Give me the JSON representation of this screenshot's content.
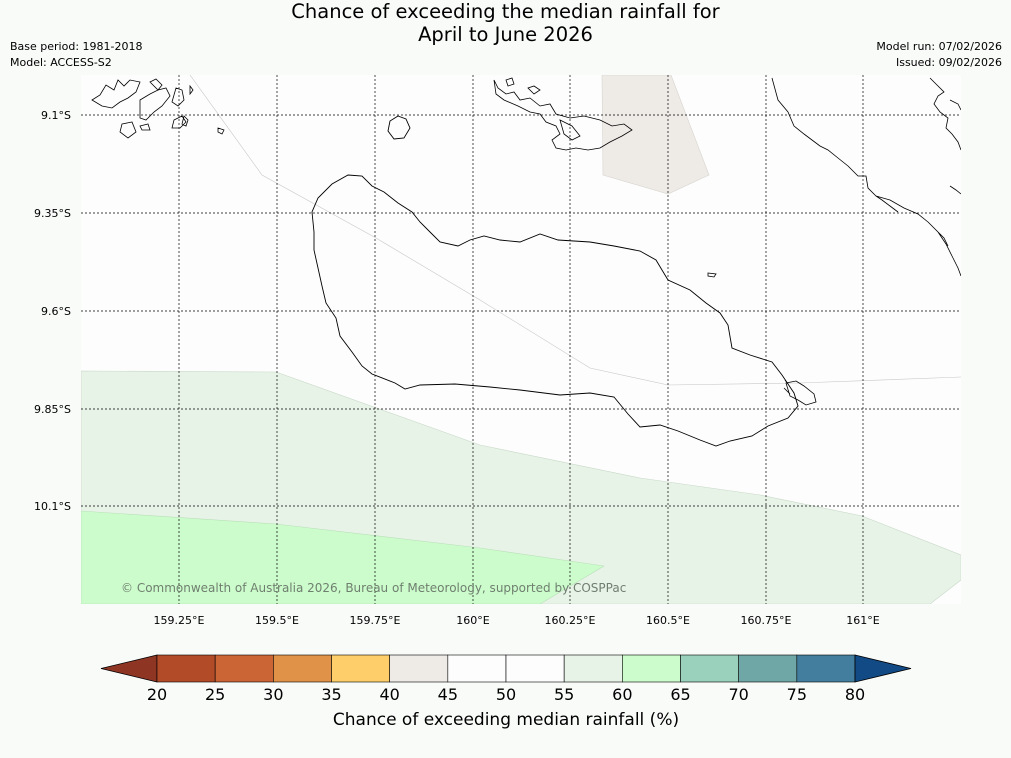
{
  "title": {
    "line1": "Chance of exceeding the median rainfall for",
    "line2": "April to June 2026"
  },
  "meta": {
    "base_period": "Base period: 1981-2018",
    "model": "Model: ACCESS-S2",
    "model_run": "Model run: 07/02/2026",
    "issued": "Issued: 09/02/2026"
  },
  "map": {
    "lat_labels": [
      "9.1°S",
      "9.35°S",
      "9.6°S",
      "9.85°S",
      "10.1°S"
    ],
    "lon_labels": [
      "159.25°E",
      "159.5°E",
      "159.75°E",
      "160°E",
      "160.25°E",
      "160.5°E",
      "160.75°E",
      "161°E"
    ],
    "copyright": "© Commonwealth of Australia 2026, Bureau of Meteorology, supported by COSPPac",
    "zone_colors": {
      "40-45": "#eeebe7",
      "55-60": "#e8f3e8",
      "60-65": "#ccfccc",
      "50-55": "#fcfdfc"
    }
  },
  "legend": {
    "title": "Chance of exceeding median rainfall (%)",
    "ticks": [
      "20",
      "25",
      "30",
      "35",
      "40",
      "45",
      "50",
      "55",
      "60",
      "65",
      "70",
      "75",
      "80"
    ],
    "low_extend_color": "#8e3524",
    "high_extend_color": "#114a85",
    "colors": [
      "#b14b28",
      "#cc6535",
      "#e09248",
      "#fdce6a",
      "#eeebe7",
      "#fcfdfc",
      "#fcfdfc",
      "#e8f3e8",
      "#ccfccc",
      "#9ad1bd",
      "#6fa6a6",
      "#437e9e"
    ]
  }
}
